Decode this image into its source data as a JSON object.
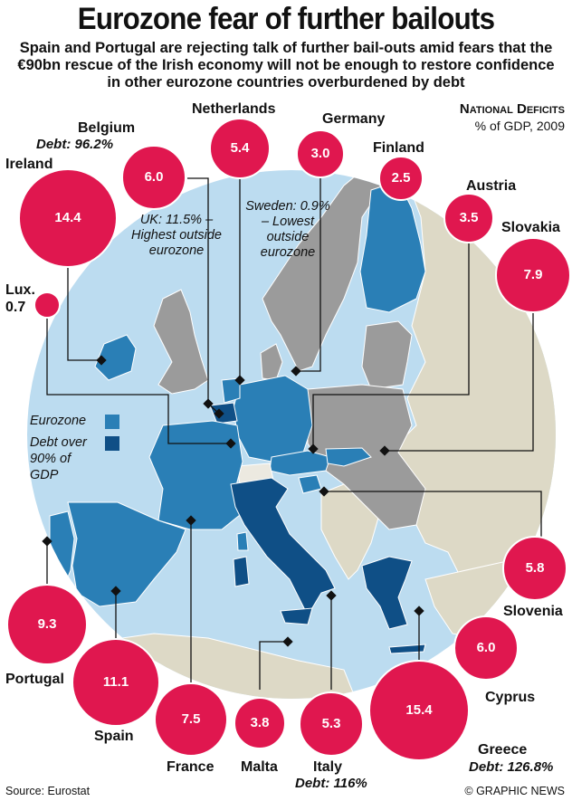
{
  "title": "Eurozone fear of further bailouts",
  "subtitle": "Spain and Portugal are rejecting talk of further bail-outs amid fears that the €90bn rescue of the Irish economy will not be enough to restore confidence in other eurozone countries overburdened by debt",
  "key": {
    "title": "National Deficits",
    "subtitle": "% of GDP, 2009"
  },
  "legend": {
    "eurozone": "Eurozone",
    "debt_over": "Debt over 90% of GDP",
    "eurozone_color": "#2a7fb6",
    "debt_color": "#0f4f86"
  },
  "colors": {
    "sea": "#bcdcf0",
    "non_eu_land": "#ddd9c6",
    "eu_non_eurozone": "#9b9b9b",
    "bubble": "#e0174f",
    "other_land": "#ece9e0"
  },
  "notes": {
    "uk": "UK: 11.5% – Highest outside eurozone",
    "sweden": "Sweden: 0.9% – Lowest outside eurozone"
  },
  "countries": [
    {
      "name": "Belgium",
      "value": "6.0",
      "debt": "Debt: 96.2%"
    },
    {
      "name": "Netherlands",
      "value": "5.4",
      "debt": ""
    },
    {
      "name": "Germany",
      "value": "3.0",
      "debt": ""
    },
    {
      "name": "Finland",
      "value": "2.5",
      "debt": ""
    },
    {
      "name": "Ireland",
      "value": "14.4",
      "debt": ""
    },
    {
      "name": "Austria",
      "value": "3.5",
      "debt": ""
    },
    {
      "name": "Slovakia",
      "value": "7.9",
      "debt": ""
    },
    {
      "name": "Lux.",
      "value": "0.7",
      "debt": ""
    },
    {
      "name": "Slovenia",
      "value": "5.8",
      "debt": ""
    },
    {
      "name": "Cyprus",
      "value": "6.0",
      "debt": ""
    },
    {
      "name": "Portugal",
      "value": "9.3",
      "debt": ""
    },
    {
      "name": "Spain",
      "value": "11.1",
      "debt": ""
    },
    {
      "name": "France",
      "value": "7.5",
      "debt": ""
    },
    {
      "name": "Malta",
      "value": "3.8",
      "debt": ""
    },
    {
      "name": "Italy",
      "value": "5.3",
      "debt": "Debt: 116%"
    },
    {
      "name": "Greece",
      "value": "15.4",
      "debt": "Debt: 126.8%"
    }
  ],
  "source": "Source: Eurostat",
  "credit": "© GRAPHIC NEWS"
}
